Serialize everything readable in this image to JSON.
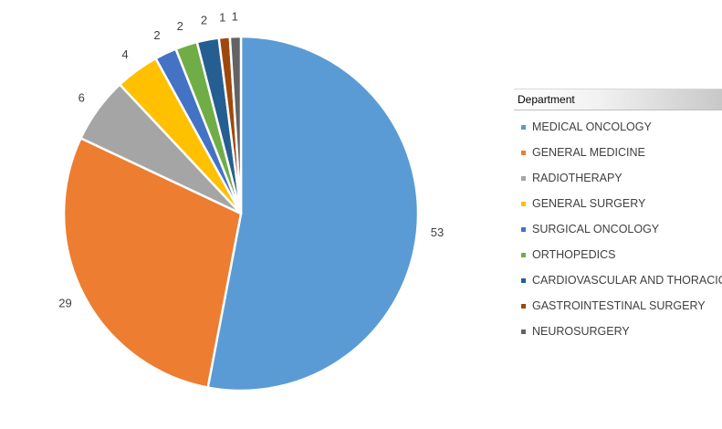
{
  "chart_data": {
    "type": "pie",
    "title": "",
    "legend": {
      "title": "Department",
      "placement": "right"
    },
    "slices": [
      {
        "label": "MEDICAL ONCOLOGY",
        "value": 53,
        "color": "#5b9bd5"
      },
      {
        "label": "GENERAL MEDICINE",
        "value": 29,
        "color": "#ed7d31"
      },
      {
        "label": "RADIOTHERAPY",
        "value": 6,
        "color": "#a5a5a5"
      },
      {
        "label": "GENERAL SURGERY",
        "value": 4,
        "color": "#ffc000"
      },
      {
        "label": "SURGICAL ONCOLOGY",
        "value": 2,
        "color": "#4472c4"
      },
      {
        "label": "ORTHOPEDICS",
        "value": 2,
        "color": "#70ad47"
      },
      {
        "label": "CARDIOVASCULAR AND THORACIC",
        "value": 2,
        "color": "#255e91"
      },
      {
        "label": "GASTROINTESTINAL SURGERY",
        "value": 1,
        "color": "#9e480e"
      },
      {
        "label": "NEUROSURGERY",
        "value": 1,
        "color": "#636363"
      }
    ]
  }
}
